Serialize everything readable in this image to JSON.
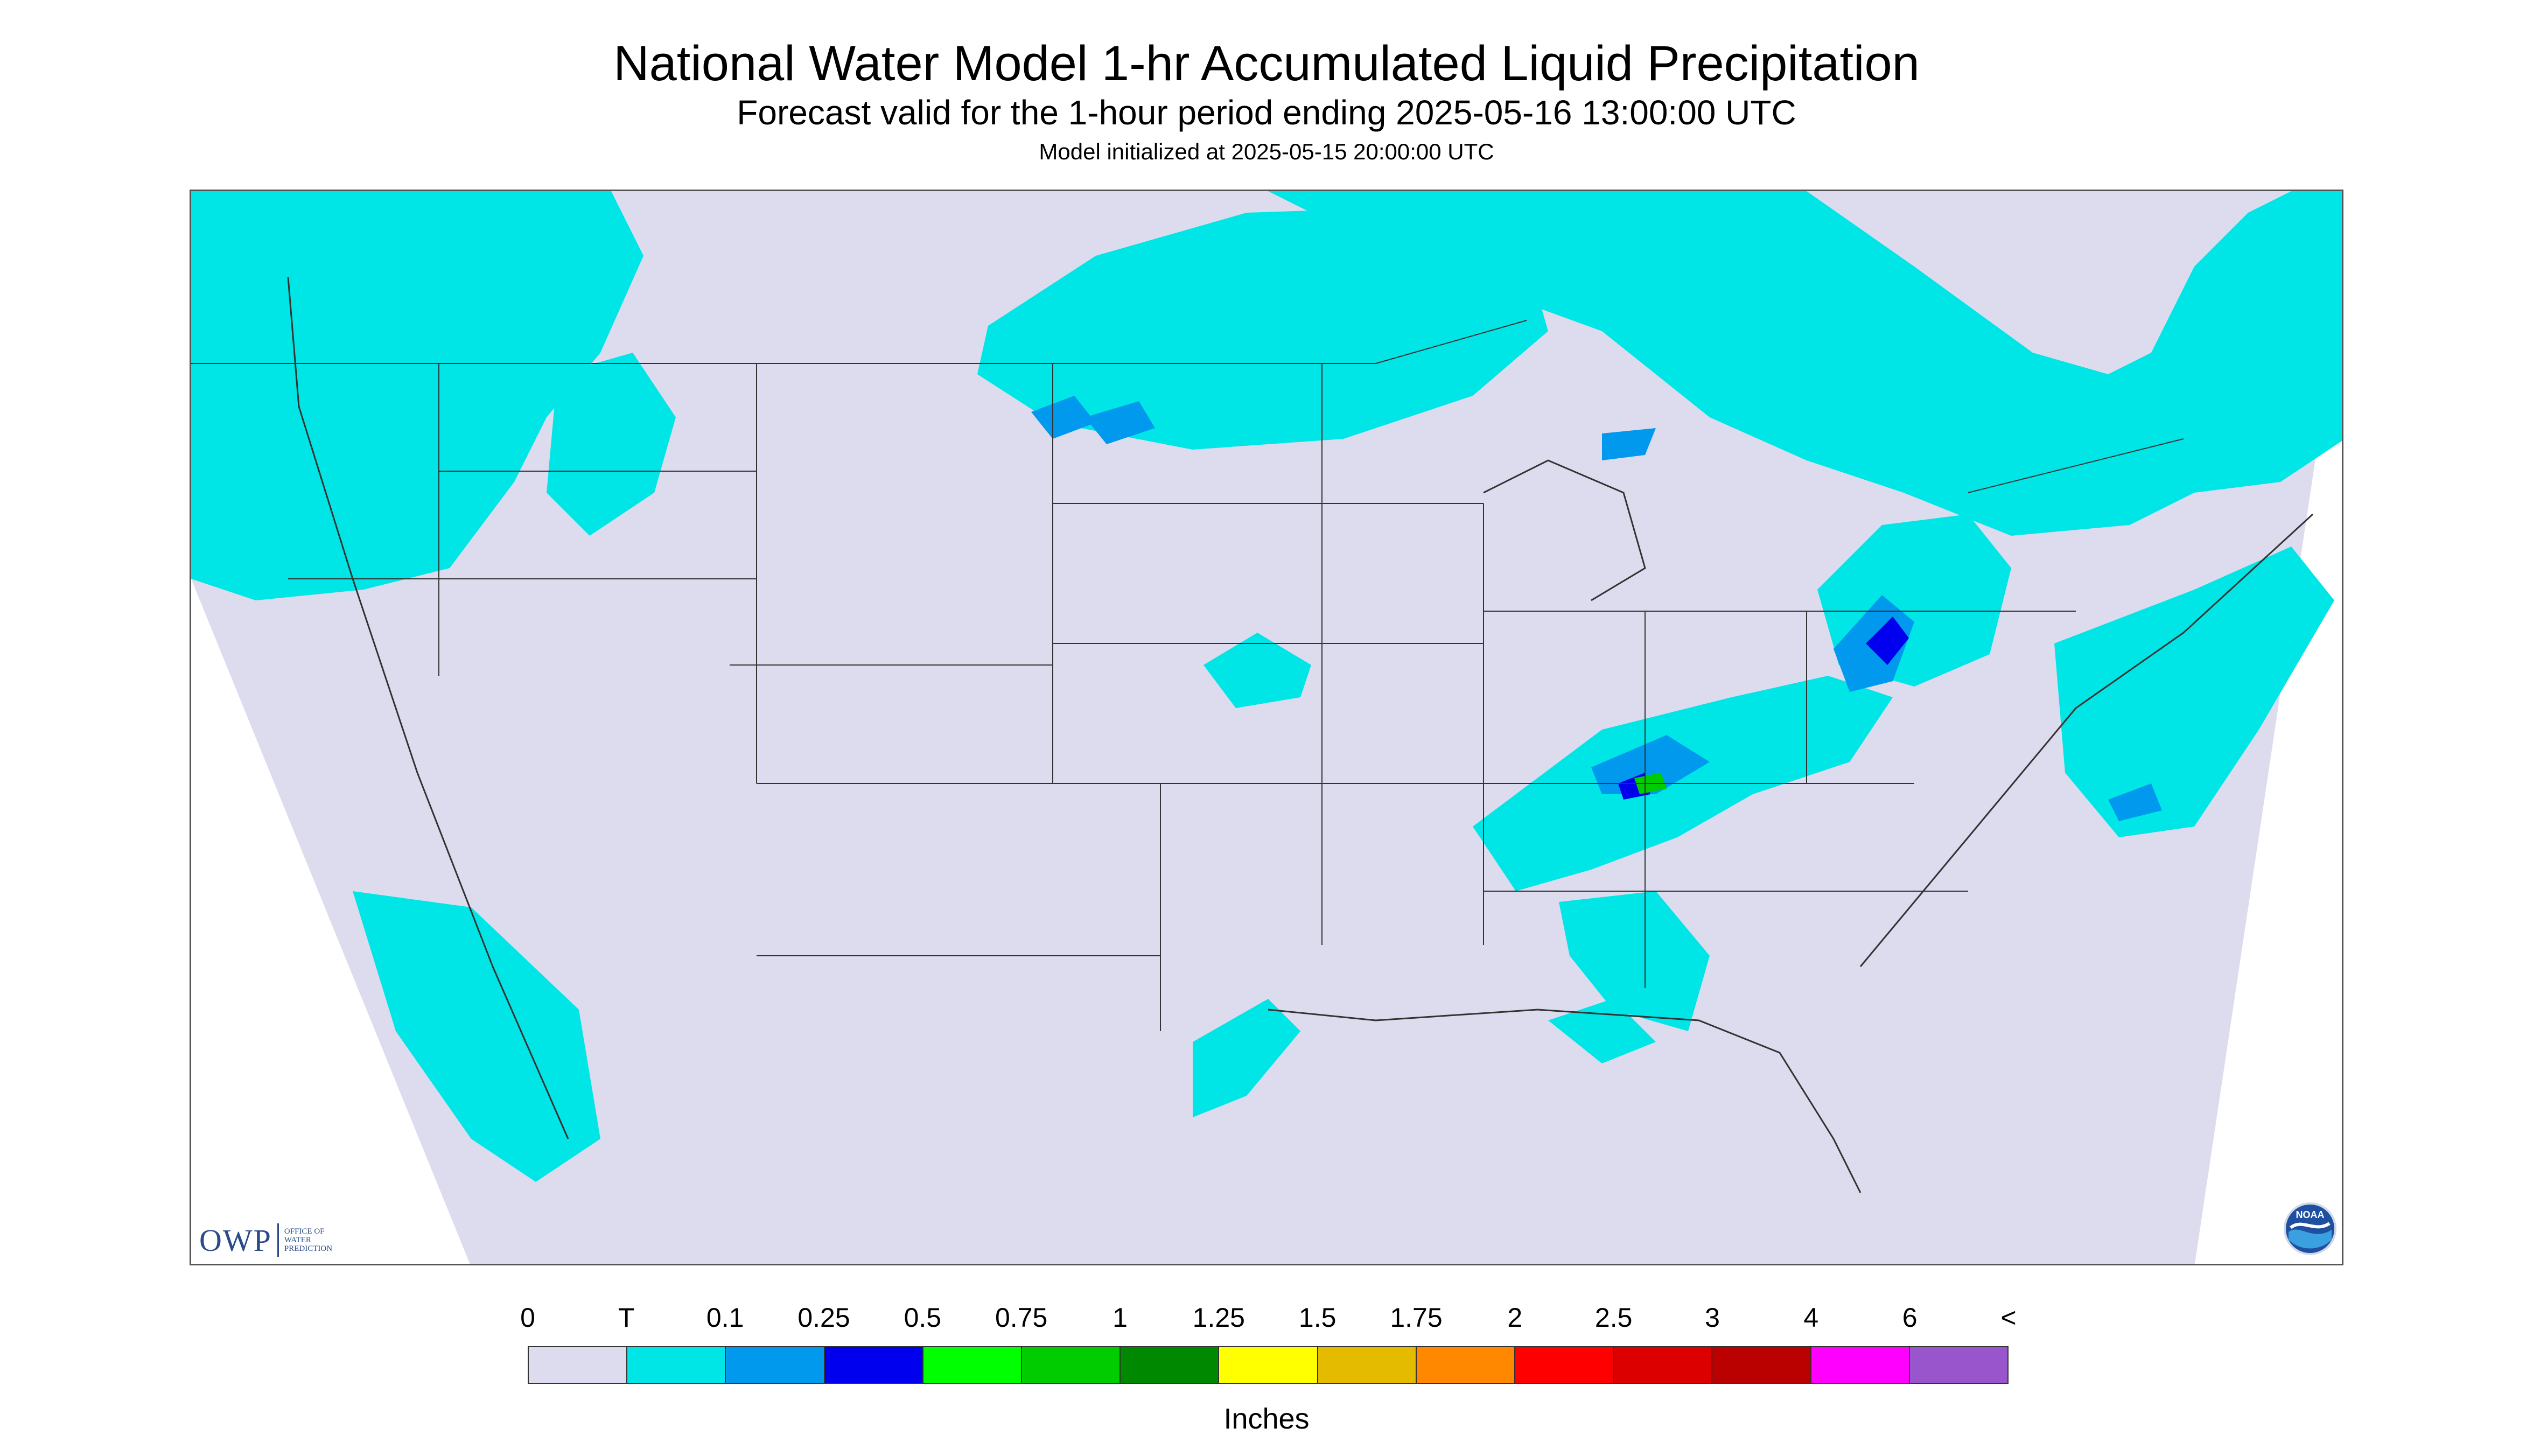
{
  "header": {
    "title": "National Water Model 1-hr Accumulated Liquid Precipitation",
    "subtitle": "Forecast valid for the 1-hour period ending 2025-05-16 13:00:00 UTC",
    "init_line": "Model initialized at 2025-05-15 20:00:00 UTC"
  },
  "map": {
    "region": "CONUS",
    "background_color": "#dcdcee",
    "outside_domain_color": "#ffffff",
    "border_color": "#333333",
    "precip_areas": [
      {
        "region": "Pacific Northwest and northern Rockies",
        "category": "T"
      },
      {
        "region": "Northern Plains / upper Midwest",
        "category": "T to 0.25"
      },
      {
        "region": "Great Lakes to New England",
        "category": "T to 0.25"
      },
      {
        "region": "Northern Pennsylvania / western New York",
        "category": "0.1 to 0.5"
      },
      {
        "region": "Kentucky / Tennessee",
        "category": "0.1 to 0.75"
      },
      {
        "region": "Southern California coast and offshore",
        "category": "T"
      },
      {
        "region": "Texas Gulf Coast",
        "category": "T"
      },
      {
        "region": "Atlantic offshore",
        "category": "T to 0.5"
      }
    ]
  },
  "logos": {
    "owp_text": "OWP",
    "owp_subtext": "OFFICE OF WATER PREDICTION",
    "noaa_text": "NOAA"
  },
  "legend": {
    "tick_labels": [
      "0",
      "T",
      "0.1",
      "0.25",
      "0.5",
      "0.75",
      "1",
      "1.25",
      "1.5",
      "1.75",
      "2",
      "2.5",
      "3",
      "4",
      "6",
      "<"
    ],
    "colors": [
      "#dcdcee",
      "#00e5e5",
      "#0099ee",
      "#0000ee",
      "#00ff00",
      "#00cc00",
      "#008800",
      "#ffff00",
      "#e5bb00",
      "#ff8800",
      "#ff0000",
      "#dd0000",
      "#bb0000",
      "#ff00ff",
      "#9955cc"
    ],
    "units": "Inches"
  }
}
